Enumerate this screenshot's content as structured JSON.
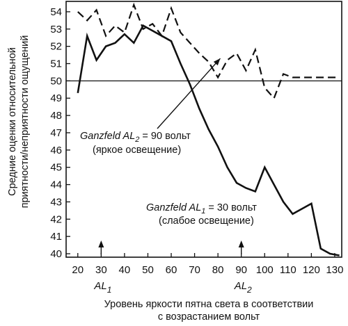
{
  "chart_data": {
    "type": "line",
    "xlabel": [
      "Уровень яркости пятна света в соответствии",
      "с возрастанием вольт"
    ],
    "ylabel": [
      "Средние оценки относительной",
      "приятности/неприятности ощущений"
    ],
    "xlim": [
      15,
      133
    ],
    "ylim": [
      39.8,
      54.6
    ],
    "x_ticks": [
      20,
      30,
      40,
      50,
      60,
      70,
      80,
      90,
      100,
      110,
      120,
      130
    ],
    "y_ticks": [
      40,
      41,
      42,
      43,
      44,
      45,
      46,
      47,
      48,
      49,
      50,
      51,
      52,
      53,
      54
    ],
    "grid": false,
    "reference_line": {
      "y": 50
    },
    "series": [
      {
        "style": "solid",
        "x": [
          20,
          24,
          28,
          32,
          36,
          40,
          44,
          48,
          52,
          56,
          60,
          64,
          68,
          72,
          76,
          80,
          84,
          88,
          92,
          96,
          100,
          104,
          108,
          112,
          116,
          120,
          124,
          128,
          132
        ],
        "y": [
          49.3,
          52.6,
          51.2,
          52.0,
          52.2,
          52.7,
          52.2,
          53.2,
          52.9,
          52.6,
          52.3,
          51.0,
          49.8,
          48.4,
          47.2,
          46.2,
          45.0,
          44.1,
          43.8,
          43.6,
          45.0,
          44.0,
          43.0,
          42.3,
          42.6,
          42.9,
          40.3,
          40.0,
          39.9
        ]
      },
      {
        "style": "dashed",
        "x": [
          20,
          24,
          28,
          32,
          36,
          40,
          44,
          48,
          52,
          56,
          60,
          64,
          68,
          72,
          76,
          80,
          84,
          88,
          92,
          96,
          100,
          104,
          108,
          112,
          116,
          120,
          124,
          128,
          132
        ],
        "y": [
          54.0,
          53.5,
          54.1,
          52.6,
          53.2,
          52.8,
          54.4,
          53.0,
          53.3,
          52.6,
          54.2,
          52.8,
          52.2,
          51.6,
          51.1,
          50.2,
          51.2,
          51.6,
          50.6,
          51.8,
          49.6,
          49.0,
          50.4,
          50.2,
          50.2,
          50.2,
          50.2,
          50.2,
          50.2
        ]
      }
    ],
    "annotations": [
      {
        "id": "ganz2",
        "lines": [
          [
            "Ganzfeld AL",
            "2",
            " = 90 вольт"
          ],
          [
            "(яркое освещение)"
          ]
        ],
        "target": {
          "x": 81,
          "y": 51.3
        }
      },
      {
        "id": "ganz1",
        "lines": [
          [
            "Ganzfeld AL",
            "1",
            " = 30 вольт"
          ],
          [
            "(слабое освещение)"
          ]
        ]
      }
    ],
    "adaptation_levels": [
      {
        "x": 30,
        "label": "AL",
        "sub": "1"
      },
      {
        "x": 90,
        "label": "AL",
        "sub": "2"
      }
    ]
  }
}
